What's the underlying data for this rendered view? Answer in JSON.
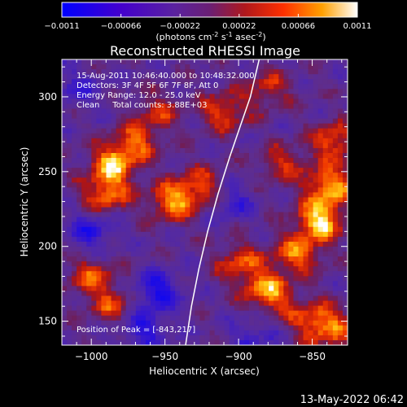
{
  "colorbar": {
    "ticks": [
      "-0.0011",
      "-0.00066",
      "-0.00022",
      "0.00022",
      "0.00066",
      "0.0011"
    ],
    "unit_label": "(photons cm",
    "unit_sup1": "-2",
    "unit_mid": " s",
    "unit_sup2": "-1",
    "unit_end": " asec",
    "unit_sup3": "-2",
    "unit_close": ")"
  },
  "chart_data": {
    "type": "heatmap",
    "title": "Reconstructed RHESSI Image",
    "xlabel": "Heliocentric X (arcsec)",
    "ylabel": "Heliocentric Y (arcsec)",
    "xlim": [
      -1020,
      -826
    ],
    "ylim": [
      134,
      325
    ],
    "xticks": [
      -1000,
      -950,
      -900,
      -850
    ],
    "yticks": [
      150,
      200,
      250,
      300
    ],
    "xtick_labels": [
      "−1000",
      "−950",
      "−900",
      "−850"
    ],
    "ytick_labels": [
      "150",
      "200",
      "250",
      "300"
    ],
    "colorscale_range": [
      -0.0011,
      0.0011
    ],
    "peak": [
      -843,
      217
    ],
    "limb_curve": [
      [
        -936,
        134
      ],
      [
        -932,
        160
      ],
      [
        -927,
        185
      ],
      [
        -921,
        210
      ],
      [
        -914,
        235
      ],
      [
        -906,
        260
      ],
      [
        -899,
        280
      ],
      [
        -892,
        300
      ],
      [
        -886,
        325
      ]
    ],
    "hotspots": [
      {
        "x": -985,
        "y": 255,
        "level": 0.85
      },
      {
        "x": -990,
        "y": 235,
        "level": 0.75
      },
      {
        "x": -970,
        "y": 270,
        "level": 0.6
      },
      {
        "x": -1000,
        "y": 180,
        "level": 0.6
      },
      {
        "x": -985,
        "y": 160,
        "level": 0.55
      },
      {
        "x": -945,
        "y": 230,
        "level": 0.8
      },
      {
        "x": -925,
        "y": 240,
        "level": 0.6
      },
      {
        "x": -910,
        "y": 290,
        "level": 0.6
      },
      {
        "x": -900,
        "y": 190,
        "level": 0.55
      },
      {
        "x": -885,
        "y": 175,
        "level": 0.5
      },
      {
        "x": -875,
        "y": 165,
        "level": 0.55
      },
      {
        "x": -860,
        "y": 195,
        "level": 0.75
      },
      {
        "x": -845,
        "y": 217,
        "level": 1.0
      },
      {
        "x": -838,
        "y": 240,
        "level": 0.9
      },
      {
        "x": -835,
        "y": 270,
        "level": 0.7
      },
      {
        "x": -850,
        "y": 150,
        "level": 0.6
      },
      {
        "x": -835,
        "y": 145,
        "level": 0.55
      },
      {
        "x": -880,
        "y": 305,
        "level": 0.5
      },
      {
        "x": -870,
        "y": 255,
        "level": 0.5
      },
      {
        "x": -955,
        "y": 290,
        "level": 0.45
      }
    ],
    "coldspots": [
      {
        "x": -955,
        "y": 170,
        "level": -0.7
      },
      {
        "x": -965,
        "y": 145,
        "level": -0.6
      },
      {
        "x": -1000,
        "y": 210,
        "level": -0.55
      },
      {
        "x": -1010,
        "y": 305,
        "level": -0.4
      },
      {
        "x": -905,
        "y": 230,
        "level": -0.45
      },
      {
        "x": -890,
        "y": 140,
        "level": -0.4
      }
    ]
  },
  "info": {
    "line1": "15-Aug-2011 10:46:40.000 to 10:48:32.000",
    "line2": "Detectors: 3F 4F 5F 6F 7F 8F, Att 0",
    "line3": "Energy Range: 12.0 - 25.0 keV",
    "line4": "Clean     Total counts: 3.88E+03",
    "peak_label": "Position of Peak = [-843,217]"
  },
  "footer": {
    "date": "13-May-2022 06:42"
  }
}
